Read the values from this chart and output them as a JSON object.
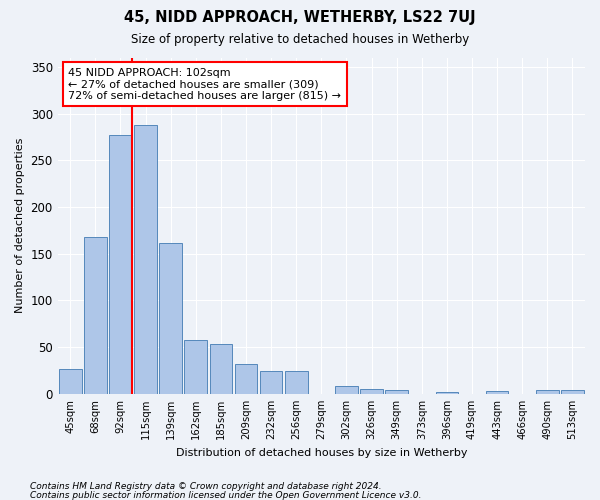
{
  "title": "45, NIDD APPROACH, WETHERBY, LS22 7UJ",
  "subtitle": "Size of property relative to detached houses in Wetherby",
  "xlabel": "Distribution of detached houses by size in Wetherby",
  "ylabel": "Number of detached properties",
  "categories": [
    "45sqm",
    "68sqm",
    "92sqm",
    "115sqm",
    "139sqm",
    "162sqm",
    "185sqm",
    "209sqm",
    "232sqm",
    "256sqm",
    "279sqm",
    "302sqm",
    "326sqm",
    "349sqm",
    "373sqm",
    "396sqm",
    "419sqm",
    "443sqm",
    "466sqm",
    "490sqm",
    "513sqm"
  ],
  "values": [
    27,
    168,
    277,
    288,
    161,
    58,
    53,
    32,
    25,
    25,
    0,
    9,
    5,
    4,
    0,
    2,
    0,
    3,
    0,
    4,
    4
  ],
  "bar_color": "#aec6e8",
  "bar_edgecolor": "#5588bb",
  "vline_x_idx": 2,
  "annotation_text": "45 NIDD APPROACH: 102sqm\n← 27% of detached houses are smaller (309)\n72% of semi-detached houses are larger (815) →",
  "annotation_box_color": "white",
  "annotation_box_edgecolor": "red",
  "vline_color": "red",
  "ylim": [
    0,
    360
  ],
  "yticks": [
    0,
    50,
    100,
    150,
    200,
    250,
    300,
    350
  ],
  "footer1": "Contains HM Land Registry data © Crown copyright and database right 2024.",
  "footer2": "Contains public sector information licensed under the Open Government Licence v3.0.",
  "bg_color": "#eef2f8",
  "grid_color": "white"
}
